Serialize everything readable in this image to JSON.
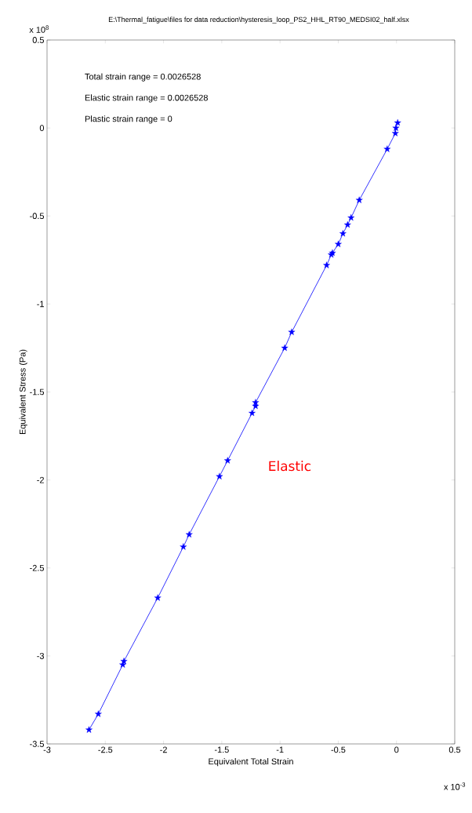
{
  "chart_data": {
    "type": "line",
    "title": "E:\\Thermal_fatigue\\files for data reduction\\hysteresis_loop_PS2_HHL_RT90_MEDSI02_half.xlsx",
    "xlabel": "Equivalent Total Strain",
    "ylabel": "Equivalent Stress (Pa)",
    "annotations": [
      "Total strain range = 0.0026528",
      "Elastic strain range = 0.0026528",
      "Plastic strain range = 0",
      "Elastic",
      "x 10$^{8}$",
      "x 10$^{-3}$"
    ],
    "series": [
      {
        "color": "#0000ff",
        "x": [
          -2.64,
          -2.56,
          -2.35,
          -2.34,
          -2.05,
          -1.83,
          -1.78,
          -1.52,
          -1.45,
          -1.24,
          -1.21,
          -1.21,
          -0.96,
          -0.9,
          -0.6,
          -0.56,
          -0.55,
          -0.5,
          -0.46,
          -0.42,
          -0.39,
          -0.32,
          -0.08,
          -0.01,
          -0.005,
          0.01
        ],
        "values": [
          -3.42,
          -3.33,
          -3.05,
          -3.03,
          -2.67,
          -2.38,
          -2.31,
          -1.98,
          -1.89,
          -1.62,
          -1.58,
          -1.56,
          -1.25,
          -1.16,
          -0.78,
          -0.72,
          -0.71,
          -0.66,
          -0.6,
          -0.55,
          -0.51,
          -0.41,
          -0.12,
          -0.03,
          0.0,
          0.03
        ]
      }
    ],
    "xlim": [
      -3,
      0.5
    ],
    "ylim": [
      -3.5,
      0.5
    ],
    "xticks": [
      -3,
      -2.5,
      -2,
      -1.5,
      -1,
      -0.5,
      0,
      0.5
    ],
    "yticks": [
      -3.5,
      -3,
      -2.5,
      -2,
      -1.5,
      -1,
      -0.5,
      0,
      0.5
    ],
    "grid": false,
    "marker": "star",
    "line_style": "solid"
  }
}
